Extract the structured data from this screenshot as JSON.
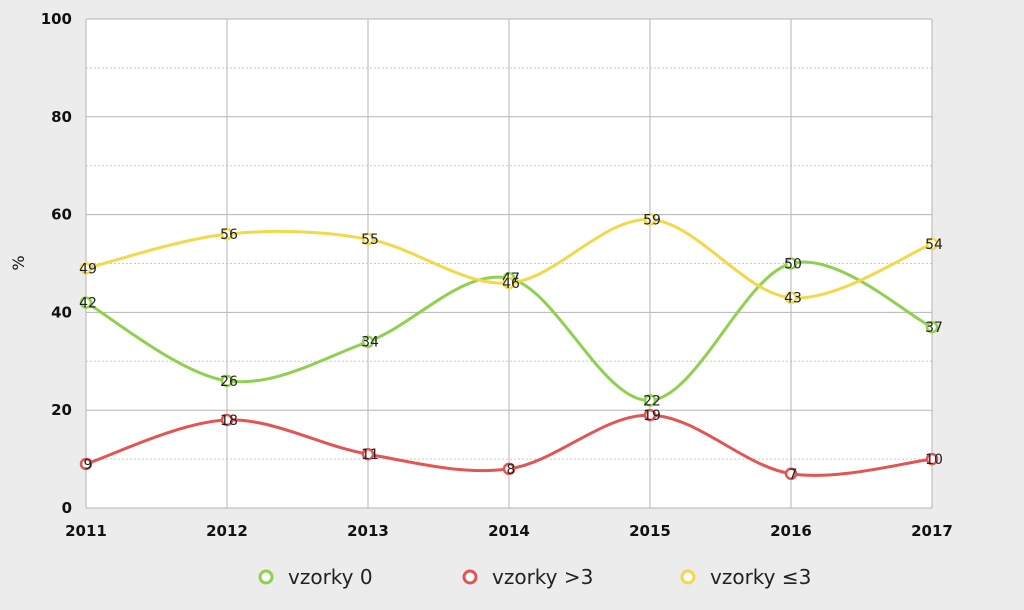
{
  "chart_data": {
    "type": "line",
    "title": "",
    "xlabel": "",
    "ylabel": "%",
    "ylim": [
      0,
      100
    ],
    "yticks": [
      0,
      20,
      40,
      60,
      80,
      100
    ],
    "categories": [
      "2011",
      "2012",
      "2013",
      "2014",
      "2015",
      "2016",
      "2017"
    ],
    "series": [
      {
        "name": "vzorky 0",
        "color": "#8fd14f",
        "values": [
          42,
          26,
          34,
          47,
          22,
          50,
          37
        ]
      },
      {
        "name": "vzorky >3",
        "color": "#e35555",
        "values": [
          9,
          18,
          11,
          8,
          19,
          7,
          10
        ]
      },
      {
        "name": "vzorky ≤3",
        "color": "#f3d84a",
        "values": [
          49,
          56,
          55,
          46,
          59,
          43,
          54
        ]
      }
    ],
    "grid": true,
    "legend": "bottom"
  }
}
